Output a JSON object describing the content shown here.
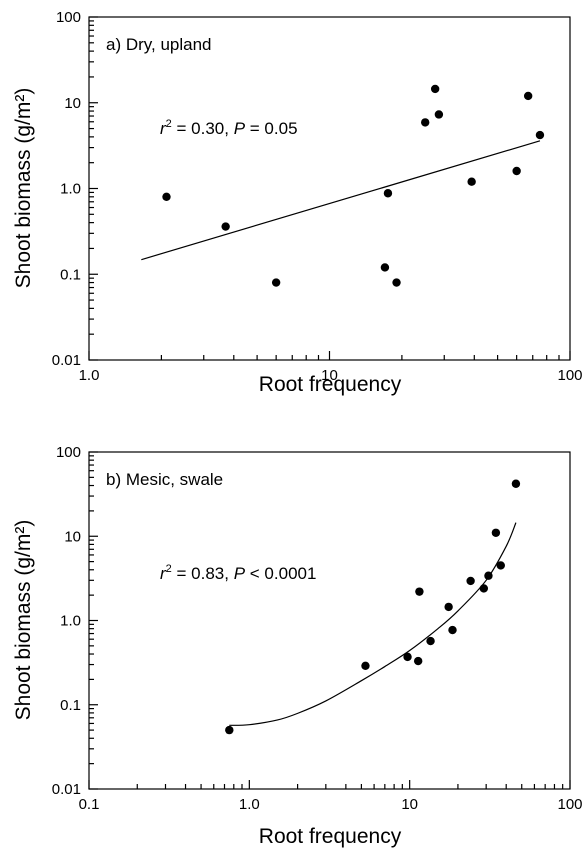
{
  "chart_data": [
    {
      "type": "scatter",
      "title": "a) Dry, upland",
      "xlabel": "Root frequency",
      "ylabel": "Shoot biomass (g/m²)",
      "xscale": "log",
      "yscale": "log",
      "xlim": [
        1.0,
        100
      ],
      "ylim": [
        0.01,
        100
      ],
      "xticks": [
        "1.0",
        "10",
        "100"
      ],
      "yticks": [
        "0.01",
        "0.1",
        "1.0",
        "10",
        "100"
      ],
      "annotation": {
        "r_sym": "r",
        "r_sup": "2",
        "r_val": " = 0.30, ",
        "p_sym": "P",
        "p_val": " = 0.05"
      },
      "points": [
        {
          "x": 2.1,
          "y": 0.8
        },
        {
          "x": 3.7,
          "y": 0.36
        },
        {
          "x": 6.0,
          "y": 0.08
        },
        {
          "x": 17.0,
          "y": 0.12
        },
        {
          "x": 17.5,
          "y": 0.88
        },
        {
          "x": 19.0,
          "y": 0.08
        },
        {
          "x": 25.0,
          "y": 5.9
        },
        {
          "x": 27.5,
          "y": 14.5
        },
        {
          "x": 28.5,
          "y": 7.3
        },
        {
          "x": 39.0,
          "y": 1.2
        },
        {
          "x": 60.0,
          "y": 1.6
        },
        {
          "x": 67.0,
          "y": 12.0
        },
        {
          "x": 75.0,
          "y": 4.2
        }
      ],
      "fit": {
        "kind": "linear-log",
        "x": [
          1.65,
          75.0
        ],
        "y": [
          0.148,
          3.6
        ]
      },
      "grid": false
    },
    {
      "type": "scatter",
      "title": "b) Mesic, swale",
      "xlabel": "Root frequency",
      "ylabel": "Shoot biomass (g/m²)",
      "xscale": "log",
      "yscale": "log",
      "xlim": [
        0.1,
        100
      ],
      "ylim": [
        0.01,
        100
      ],
      "xticks": [
        "0.1",
        "1.0",
        "10",
        "100"
      ],
      "yticks": [
        "0.01",
        "0.1",
        "1.0",
        "10",
        "100"
      ],
      "annotation": {
        "r_sym": "r",
        "r_sup": "2",
        "r_val": " = 0.83, ",
        "p_sym": "P",
        "p_val": " < 0.0001"
      },
      "points": [
        {
          "x": 0.75,
          "y": 0.05
        },
        {
          "x": 5.3,
          "y": 0.29
        },
        {
          "x": 9.7,
          "y": 0.37
        },
        {
          "x": 11.3,
          "y": 0.33
        },
        {
          "x": 11.5,
          "y": 2.2
        },
        {
          "x": 13.5,
          "y": 0.57
        },
        {
          "x": 17.5,
          "y": 1.45
        },
        {
          "x": 18.5,
          "y": 0.77
        },
        {
          "x": 24.0,
          "y": 2.95
        },
        {
          "x": 29.0,
          "y": 2.4
        },
        {
          "x": 31.0,
          "y": 3.4
        },
        {
          "x": 34.5,
          "y": 11.0
        },
        {
          "x": 37.0,
          "y": 4.5
        },
        {
          "x": 46.0,
          "y": 42.0
        }
      ],
      "fit": {
        "kind": "curve",
        "x": [
          0.75,
          1.0,
          1.5,
          2.0,
          3.0,
          5.0,
          7.0,
          10.0,
          15.0,
          20.0,
          30.0,
          40.0,
          46.0
        ],
        "y": [
          0.057,
          0.058,
          0.066,
          0.079,
          0.111,
          0.193,
          0.284,
          0.44,
          0.8,
          1.3,
          3.0,
          7.6,
          14.5
        ]
      },
      "grid": false
    }
  ]
}
